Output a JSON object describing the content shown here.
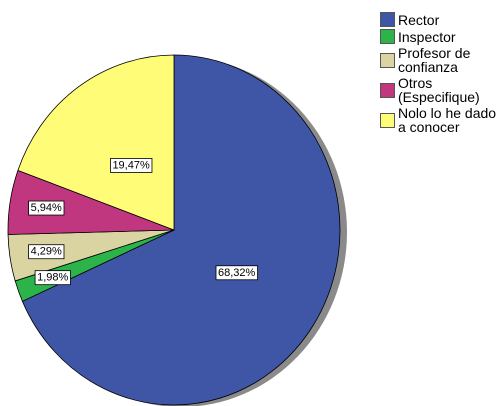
{
  "chart_data": {
    "type": "pie",
    "categories": [
      "Rector",
      "Inspector",
      "Profesor de confianza",
      "Otros (Especifique)",
      "Nolo lo he dado a conocer"
    ],
    "values": [
      68.32,
      1.98,
      4.29,
      5.94,
      19.47
    ],
    "value_labels": [
      "68,32%",
      "1,98%",
      "4,29%",
      "5,94%",
      "19,47%"
    ],
    "colors": [
      "#3f55a6",
      "#2cb34a",
      "#d9d4a2",
      "#c1377f",
      "#fffd78"
    ],
    "legend": "right"
  }
}
